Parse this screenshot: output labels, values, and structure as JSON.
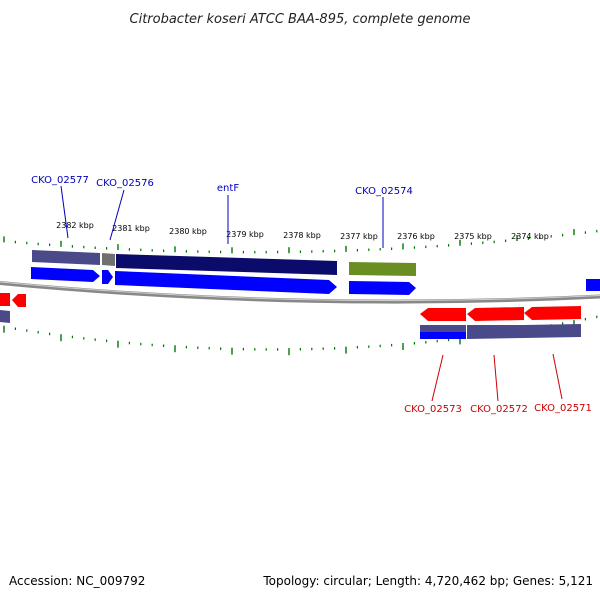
{
  "title": "Citrobacter koseri ATCC BAA-895, complete genome",
  "footer": {
    "accession": "Accession: NC_009792",
    "summary": "Topology: circular; Length: 4,720,462 bp; Genes: 5,121"
  },
  "colors": {
    "forward_cds": "#0000ff",
    "reverse_cds": "#ff0000",
    "forward_label": "#0000bb",
    "reverse_label": "#cc0000",
    "backbone": "#888888",
    "ticks": "#007700",
    "cog_navy": "#0b0b6b",
    "cog_slate": "#4a4a8a",
    "cog_olive": "#6b8e23",
    "cog_grey": "#707070"
  },
  "ticks": [
    "2382 kbp",
    "2381 kbp",
    "2380 kbp",
    "2379 kbp",
    "2378 kbp",
    "2377 kbp",
    "2376 kbp",
    "2375 kbp",
    "2374 kbp"
  ],
  "forward_genes": [
    "CKO_02577",
    "CKO_02576",
    "entF",
    "CKO_02574"
  ],
  "reverse_genes": [
    "CKO_02573",
    "CKO_02572",
    "CKO_02571"
  ]
}
